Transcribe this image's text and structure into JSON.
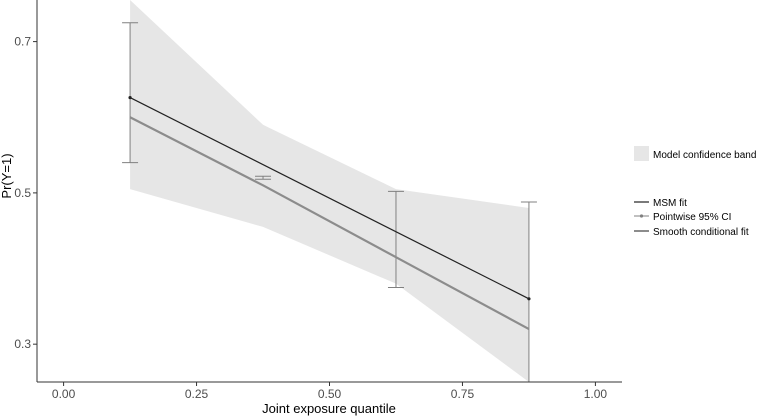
{
  "chart_data": {
    "type": "line",
    "xlabel": "Joint exposure quantile",
    "ylabel": "Pr(Y=1)",
    "xlim": [
      -0.05,
      1.05
    ],
    "ylim": [
      0.25,
      0.755
    ],
    "x_ticks": [
      "0.00",
      "0.25",
      "0.50",
      "0.75",
      "1.00"
    ],
    "x_tick_values": [
      0,
      0.25,
      0.5,
      0.75,
      1.0
    ],
    "y_ticks": [
      "0.3",
      "0.5",
      "0.7"
    ],
    "y_tick_values": [
      0.3,
      0.5,
      0.7
    ],
    "grid": false,
    "legend_position": "right",
    "confidence_band": {
      "name": "Model confidence band",
      "x": [
        0.125,
        0.375,
        0.625,
        0.875
      ],
      "lower": [
        0.505,
        0.455,
        0.38,
        0.25
      ],
      "upper": [
        0.755,
        0.59,
        0.505,
        0.48
      ]
    },
    "series": [
      {
        "name": "MSM fit",
        "x": [
          0.125,
          0.875
        ],
        "y": [
          0.626,
          0.36
        ],
        "color": "#222222"
      },
      {
        "name": "Pointwise 95% CI",
        "x": [
          0.125,
          0.375,
          0.625,
          0.875
        ],
        "lower": [
          0.54,
          0.518,
          0.375,
          0.25
        ],
        "upper": [
          0.725,
          0.522,
          0.502,
          0.488
        ],
        "color": "#808080"
      },
      {
        "name": "Smooth conditional fit",
        "x": [
          0.125,
          0.375,
          0.625,
          0.875
        ],
        "y": [
          0.6,
          0.51,
          0.415,
          0.32
        ],
        "color": "#8c8c8c"
      }
    ]
  }
}
